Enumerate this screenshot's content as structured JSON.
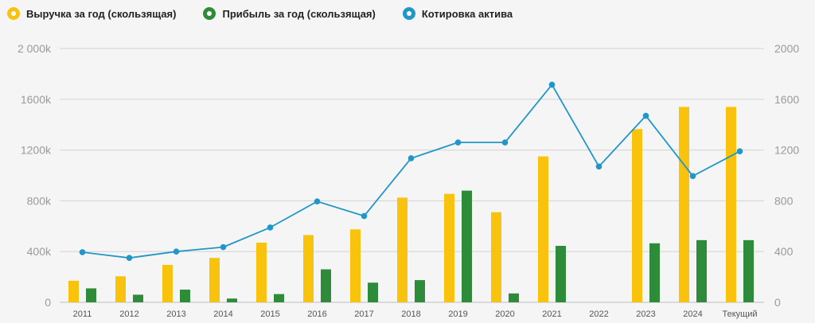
{
  "legend": {
    "items": [
      {
        "label": "Выручка за год (скользящая)",
        "color": "#f9c20c"
      },
      {
        "label": "Прибыль за год (скользящая)",
        "color": "#2e8b3a"
      },
      {
        "label": "Котировка актива",
        "color": "#2196c8"
      }
    ]
  },
  "chart_data": {
    "type": "bar",
    "categories": [
      "2011",
      "2012",
      "2013",
      "2014",
      "2015",
      "2016",
      "2017",
      "2018",
      "2019",
      "2020",
      "2021",
      "2022",
      "2023",
      "2024",
      "Текущий"
    ],
    "series": [
      {
        "name": "Выручка за год (скользящая)",
        "type": "bar",
        "axis": "left",
        "color": "#f9c20c",
        "values": [
          170,
          205,
          295,
          350,
          470,
          530,
          575,
          825,
          855,
          710,
          1150,
          null,
          1365,
          1540,
          1540
        ]
      },
      {
        "name": "Прибыль за год (скользящая)",
        "type": "bar",
        "axis": "left",
        "color": "#2e8b3a",
        "values": [
          110,
          60,
          100,
          30,
          65,
          260,
          155,
          175,
          880,
          70,
          445,
          null,
          465,
          490,
          490
        ]
      },
      {
        "name": "Котировка актива",
        "type": "line",
        "axis": "right",
        "color": "#2196c8",
        "values": [
          395,
          350,
          400,
          435,
          590,
          795,
          680,
          1135,
          1260,
          1260,
          1715,
          1070,
          1470,
          995,
          1190
        ]
      }
    ],
    "left_axis": {
      "ticks": [
        "0",
        "400k",
        "800k",
        "1200k",
        "1600k",
        "2 000k"
      ],
      "range": [
        0,
        2000
      ],
      "unit": "k"
    },
    "right_axis": {
      "ticks": [
        "0",
        "400",
        "800",
        "1200",
        "1600",
        "2000"
      ],
      "range": [
        0,
        2000
      ]
    },
    "grid": true,
    "legend_position": "top-left"
  }
}
